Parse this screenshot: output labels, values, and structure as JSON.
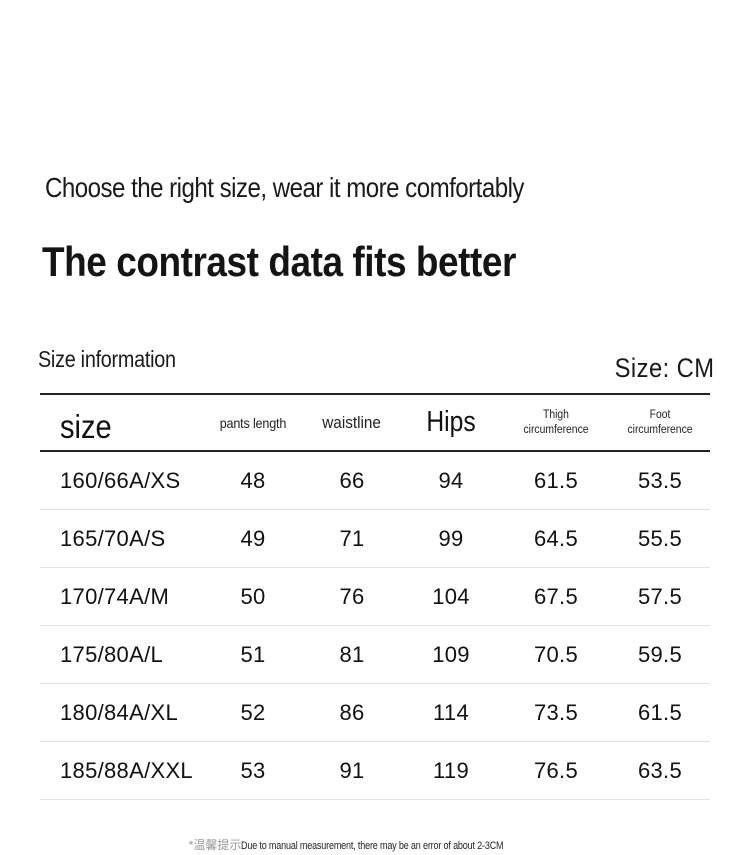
{
  "header": {
    "subtitle": "Choose the right size, wear it more comfortably",
    "title": "The contrast data fits better"
  },
  "section": {
    "label": "Size information",
    "unit": "Size: CM"
  },
  "table": {
    "headers": {
      "size": "size",
      "pants_length": "pants length",
      "waistline": "waistline",
      "hips": "Hips",
      "thigh_1": "Thigh",
      "thigh_2": "circumference",
      "foot_1": "Foot",
      "foot_2": "circumference"
    },
    "rows": [
      [
        "160/66A/XS",
        "48",
        "66",
        "94",
        "61.5",
        "53.5"
      ],
      [
        "165/70A/S",
        "49",
        "71",
        "99",
        "64.5",
        "55.5"
      ],
      [
        "170/74A/M",
        "50",
        "76",
        "104",
        "67.5",
        "57.5"
      ],
      [
        "175/80A/L",
        "51",
        "81",
        "109",
        "70.5",
        "59.5"
      ],
      [
        "180/84A/XL",
        "52",
        "86",
        "114",
        "73.5",
        "61.5"
      ],
      [
        "185/88A/XXL",
        "53",
        "91",
        "119",
        "76.5",
        "63.5"
      ]
    ]
  },
  "footer": {
    "note_cn": "*温馨提示",
    "note_en": "Due to manual measurement, there may be an error of about 2-3CM"
  }
}
